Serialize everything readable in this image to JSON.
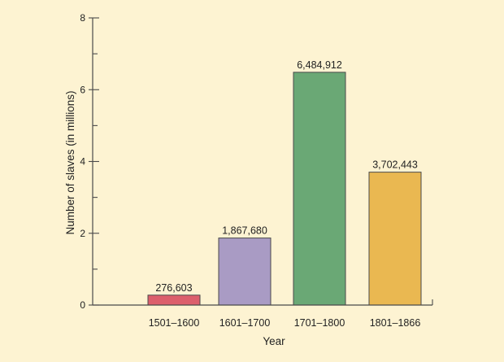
{
  "chart_data": {
    "type": "bar",
    "title": "",
    "xlabel": "Year",
    "ylabel": "Number of slaves (in millions)",
    "categories": [
      "1501–1600",
      "1601–1700",
      "1701–1800",
      "1801–1866"
    ],
    "values": [
      0.276603,
      1.86768,
      6.484912,
      3.702443
    ],
    "value_labels": [
      "276,603",
      "1,867,680",
      "6,484,912",
      "3,702,443"
    ],
    "bar_colors": [
      "#dc5f6c",
      "#a99bc4",
      "#6aa875",
      "#eab851"
    ],
    "ylim": [
      0,
      8
    ],
    "yticks_major": [
      0,
      2,
      4,
      6,
      8
    ],
    "ytick_labels": [
      "0",
      "2",
      "4",
      "6",
      "8"
    ],
    "yticks_minor_step": 1,
    "grid": false,
    "legend": "none"
  }
}
